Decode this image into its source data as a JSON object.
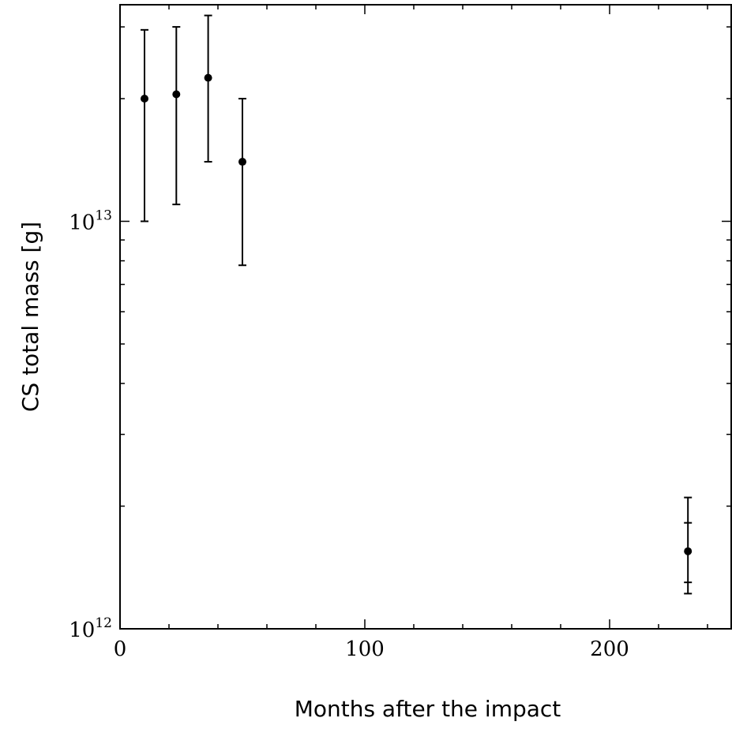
{
  "chart_data": {
    "type": "scatter",
    "title": "",
    "xlabel": "Months after the impact",
    "ylabel": "CS total mass [g]",
    "xlim": [
      0,
      250
    ],
    "ylim": [
      1000000000000.0,
      34000000000000.0
    ],
    "yscale": "log",
    "grid": false,
    "x_ticks": [
      {
        "value": 0,
        "label": "0"
      },
      {
        "value": 100,
        "label": "100"
      },
      {
        "value": 200,
        "label": "200"
      }
    ],
    "y_ticks": [
      {
        "value": 1000000000000.0,
        "base": "10",
        "exp": "12"
      },
      {
        "value": 10000000000000.0,
        "base": "10",
        "exp": "13"
      }
    ],
    "points": [
      {
        "x": 10,
        "y": 20000000000000.0,
        "y_low": 10000000000000.0,
        "y_high": 29500000000000.0
      },
      {
        "x": 23,
        "y": 20500000000000.0,
        "y_low": 11000000000000.0,
        "y_high": 30000000000000.0
      },
      {
        "x": 36,
        "y": 22500000000000.0,
        "y_low": 14000000000000.0,
        "y_high": 32000000000000.0
      },
      {
        "x": 50,
        "y": 14000000000000.0,
        "y_low": 7800000000000.0,
        "y_high": 20000000000000.0
      },
      {
        "x": 232,
        "y": 1550000000000.0,
        "y_low": 1220000000000.0,
        "y_high": 2100000000000.0,
        "y_low_inner": 1300000000000.0,
        "y_high_inner": 1820000000000.0
      }
    ],
    "colors": {
      "marker": "#000000",
      "axis": "#000000"
    }
  }
}
